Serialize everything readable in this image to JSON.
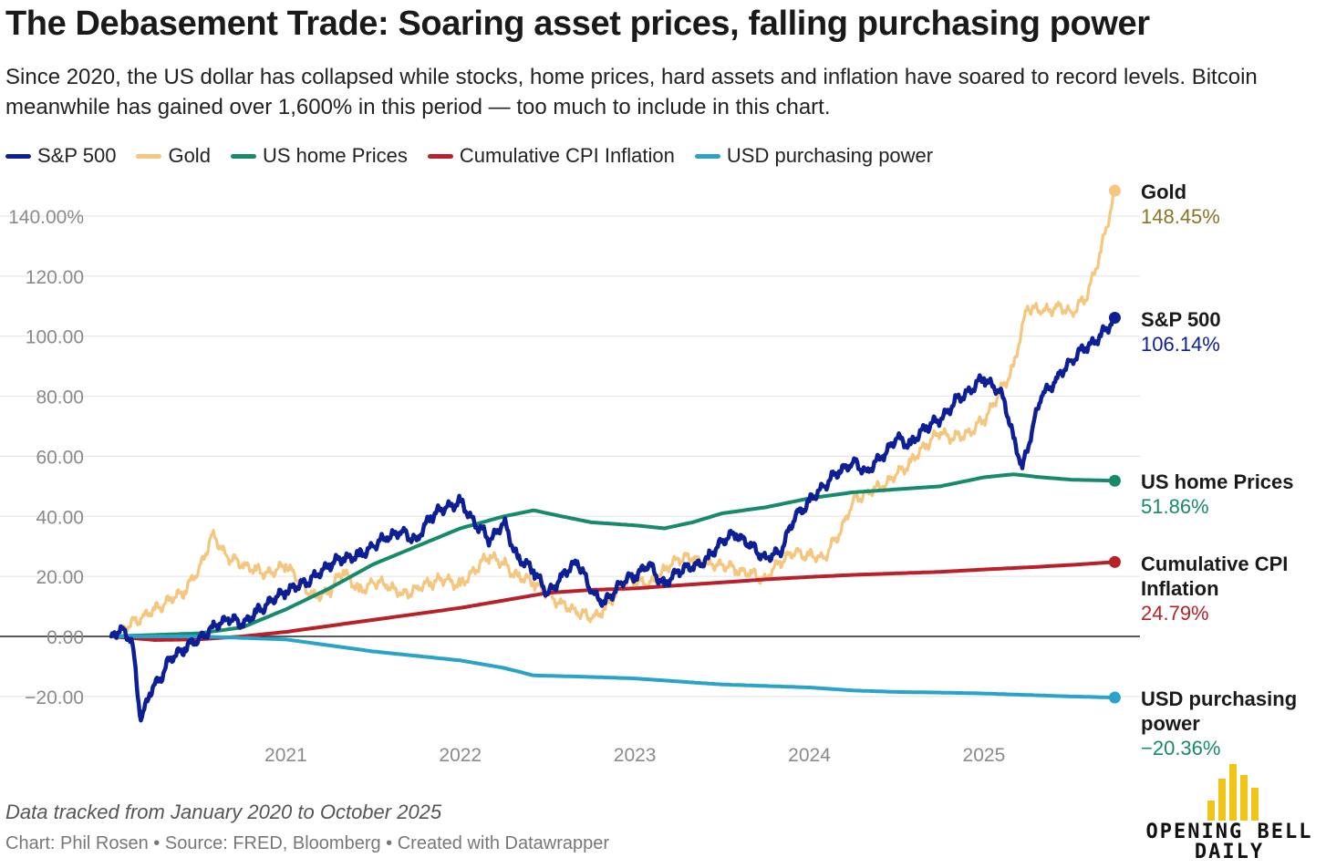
{
  "title": "The Debasement Trade: Soaring asset prices, falling purchasing power",
  "subtitle": "Since 2020, the US dollar has collapsed while stocks, home prices, hard assets and inflation have soared to record levels. Bitcoin meanwhile has gained over 1,600% in this period — too much to include in this chart.",
  "footnote": "Data tracked from January 2020 to October 2025",
  "credits": "Chart: Phil Rosen • Source: FRED, Bloomberg • Created with Datawrapper",
  "logo": {
    "line1": "OPENING BELL",
    "line2": "DAILY"
  },
  "colors": {
    "sp500": "#0d1f96",
    "gold": "#f5c77e",
    "home": "#168a6b",
    "cpi": "#b8202a",
    "usd": "#2aa3c8",
    "gold_label_value": "#8a7424",
    "logo_bars": "#f2c418"
  },
  "chart_data": {
    "type": "line",
    "x_unit": "year",
    "xlim": [
      2020.0,
      2025.8
    ],
    "ylim": [
      -33,
      150
    ],
    "y_ticks": [
      {
        "value": 140,
        "label": "140.00%"
      },
      {
        "value": 120,
        "label": "120.00"
      },
      {
        "value": 100,
        "label": "100.00"
      },
      {
        "value": 80,
        "label": "80.00"
      },
      {
        "value": 60,
        "label": "60.00"
      },
      {
        "value": 40,
        "label": "40.00"
      },
      {
        "value": 20,
        "label": "20.00"
      },
      {
        "value": 0,
        "label": "0.00"
      },
      {
        "value": -20,
        "label": "−20.00"
      }
    ],
    "x_ticks": [
      {
        "value": 2021.0,
        "label": "2021"
      },
      {
        "value": 2022.0,
        "label": "2022"
      },
      {
        "value": 2023.0,
        "label": "2023"
      },
      {
        "value": 2024.0,
        "label": "2024"
      },
      {
        "value": 2025.0,
        "label": "2025"
      }
    ],
    "grid": "horizontal",
    "legend_position": "top-left",
    "series": [
      {
        "key": "gold",
        "name": "Gold",
        "end_label": "Gold",
        "end_value_label": "148.45%",
        "points": [
          [
            2020.0,
            0
          ],
          [
            2020.08,
            3
          ],
          [
            2020.17,
            6
          ],
          [
            2020.25,
            9
          ],
          [
            2020.33,
            12
          ],
          [
            2020.42,
            15
          ],
          [
            2020.5,
            22
          ],
          [
            2020.58,
            34
          ],
          [
            2020.67,
            26
          ],
          [
            2020.75,
            24
          ],
          [
            2020.83,
            22
          ],
          [
            2020.92,
            21
          ],
          [
            2021.0,
            24
          ],
          [
            2021.08,
            18
          ],
          [
            2021.17,
            13
          ],
          [
            2021.25,
            15
          ],
          [
            2021.33,
            22
          ],
          [
            2021.42,
            15
          ],
          [
            2021.5,
            18
          ],
          [
            2021.58,
            17
          ],
          [
            2021.67,
            14
          ],
          [
            2021.75,
            16
          ],
          [
            2021.83,
            18
          ],
          [
            2021.92,
            19
          ],
          [
            2022.0,
            17
          ],
          [
            2022.08,
            22
          ],
          [
            2022.17,
            27
          ],
          [
            2022.25,
            24
          ],
          [
            2022.33,
            20
          ],
          [
            2022.42,
            18
          ],
          [
            2022.5,
            14
          ],
          [
            2022.58,
            11
          ],
          [
            2022.67,
            8
          ],
          [
            2022.75,
            6
          ],
          [
            2022.83,
            9
          ],
          [
            2022.92,
            17
          ],
          [
            2023.0,
            19
          ],
          [
            2023.08,
            17
          ],
          [
            2023.17,
            22
          ],
          [
            2023.25,
            26
          ],
          [
            2023.33,
            26
          ],
          [
            2023.42,
            24
          ],
          [
            2023.5,
            24
          ],
          [
            2023.58,
            22
          ],
          [
            2023.67,
            21
          ],
          [
            2023.75,
            19
          ],
          [
            2023.83,
            25
          ],
          [
            2023.92,
            28
          ],
          [
            2024.0,
            27
          ],
          [
            2024.08,
            26
          ],
          [
            2024.17,
            34
          ],
          [
            2024.25,
            45
          ],
          [
            2024.33,
            48
          ],
          [
            2024.42,
            50
          ],
          [
            2024.5,
            54
          ],
          [
            2024.58,
            58
          ],
          [
            2024.67,
            64
          ],
          [
            2024.75,
            68
          ],
          [
            2024.83,
            66
          ],
          [
            2024.92,
            68
          ],
          [
            2025.0,
            72
          ],
          [
            2025.08,
            80
          ],
          [
            2025.17,
            90
          ],
          [
            2025.25,
            110
          ],
          [
            2025.33,
            108
          ],
          [
            2025.42,
            110
          ],
          [
            2025.5,
            108
          ],
          [
            2025.58,
            112
          ],
          [
            2025.67,
            128
          ],
          [
            2025.75,
            148.45
          ]
        ]
      },
      {
        "key": "sp500",
        "name": "S&P 500",
        "end_label": "S&P 500",
        "end_value_label": "106.14%",
        "points": [
          [
            2020.0,
            0
          ],
          [
            2020.06,
            3
          ],
          [
            2020.12,
            -2
          ],
          [
            2020.17,
            -28
          ],
          [
            2020.22,
            -19
          ],
          [
            2020.28,
            -14
          ],
          [
            2020.33,
            -8
          ],
          [
            2020.42,
            -4
          ],
          [
            2020.5,
            -1
          ],
          [
            2020.58,
            3
          ],
          [
            2020.67,
            6
          ],
          [
            2020.75,
            4
          ],
          [
            2020.83,
            8
          ],
          [
            2020.92,
            12
          ],
          [
            2021.0,
            15
          ],
          [
            2021.08,
            17
          ],
          [
            2021.17,
            20
          ],
          [
            2021.25,
            24
          ],
          [
            2021.33,
            26
          ],
          [
            2021.42,
            27
          ],
          [
            2021.5,
            30
          ],
          [
            2021.58,
            33
          ],
          [
            2021.67,
            35
          ],
          [
            2021.75,
            32
          ],
          [
            2021.83,
            40
          ],
          [
            2021.92,
            43
          ],
          [
            2022.0,
            45
          ],
          [
            2022.08,
            38
          ],
          [
            2022.17,
            32
          ],
          [
            2022.25,
            38
          ],
          [
            2022.33,
            26
          ],
          [
            2022.42,
            22
          ],
          [
            2022.5,
            14
          ],
          [
            2022.58,
            20
          ],
          [
            2022.67,
            25
          ],
          [
            2022.75,
            15
          ],
          [
            2022.83,
            11
          ],
          [
            2022.92,
            18
          ],
          [
            2023.0,
            20
          ],
          [
            2023.08,
            24
          ],
          [
            2023.17,
            17
          ],
          [
            2023.25,
            22
          ],
          [
            2023.33,
            23
          ],
          [
            2023.42,
            26
          ],
          [
            2023.5,
            32
          ],
          [
            2023.58,
            34
          ],
          [
            2023.67,
            30
          ],
          [
            2023.75,
            26
          ],
          [
            2023.83,
            28
          ],
          [
            2023.92,
            40
          ],
          [
            2024.0,
            45
          ],
          [
            2024.08,
            50
          ],
          [
            2024.17,
            55
          ],
          [
            2024.25,
            58
          ],
          [
            2024.33,
            55
          ],
          [
            2024.42,
            60
          ],
          [
            2024.5,
            66
          ],
          [
            2024.58,
            64
          ],
          [
            2024.67,
            70
          ],
          [
            2024.75,
            72
          ],
          [
            2024.83,
            78
          ],
          [
            2024.92,
            82
          ],
          [
            2025.0,
            86
          ],
          [
            2025.08,
            82
          ],
          [
            2025.12,
            78
          ],
          [
            2025.17,
            66
          ],
          [
            2025.22,
            56
          ],
          [
            2025.28,
            70
          ],
          [
            2025.33,
            80
          ],
          [
            2025.42,
            86
          ],
          [
            2025.5,
            92
          ],
          [
            2025.58,
            96
          ],
          [
            2025.67,
            100
          ],
          [
            2025.75,
            106.14
          ]
        ]
      },
      {
        "key": "home",
        "name": "US home Prices",
        "end_label": "US home Prices",
        "end_value_label": "51.86%",
        "points": [
          [
            2020.0,
            0
          ],
          [
            2020.25,
            0.5
          ],
          [
            2020.5,
            1
          ],
          [
            2020.75,
            3
          ],
          [
            2021.0,
            9
          ],
          [
            2021.25,
            16
          ],
          [
            2021.5,
            24
          ],
          [
            2021.75,
            30
          ],
          [
            2022.0,
            36
          ],
          [
            2022.25,
            40
          ],
          [
            2022.42,
            42
          ],
          [
            2022.58,
            40
          ],
          [
            2022.75,
            38
          ],
          [
            2023.0,
            37
          ],
          [
            2023.17,
            36
          ],
          [
            2023.33,
            38
          ],
          [
            2023.5,
            41
          ],
          [
            2023.75,
            43
          ],
          [
            2024.0,
            46
          ],
          [
            2024.25,
            48
          ],
          [
            2024.5,
            49
          ],
          [
            2024.75,
            50
          ],
          [
            2025.0,
            53
          ],
          [
            2025.17,
            54
          ],
          [
            2025.33,
            53
          ],
          [
            2025.5,
            52.2
          ],
          [
            2025.75,
            51.86
          ]
        ]
      },
      {
        "key": "cpi",
        "name": "Cumulative CPI Inflation",
        "end_label": "Cumulative CPI Inflation",
        "end_value_label": "24.79%",
        "points": [
          [
            2020.0,
            0
          ],
          [
            2020.25,
            -1.2
          ],
          [
            2020.5,
            -1
          ],
          [
            2020.75,
            0
          ],
          [
            2021.0,
            1.5
          ],
          [
            2021.25,
            3.5
          ],
          [
            2021.5,
            5.5
          ],
          [
            2021.75,
            7.5
          ],
          [
            2022.0,
            9.5
          ],
          [
            2022.25,
            12
          ],
          [
            2022.5,
            14.5
          ],
          [
            2022.75,
            15.5
          ],
          [
            2023.0,
            16
          ],
          [
            2023.25,
            17
          ],
          [
            2023.5,
            18
          ],
          [
            2023.75,
            19
          ],
          [
            2024.0,
            19.8
          ],
          [
            2024.25,
            20.5
          ],
          [
            2024.5,
            21
          ],
          [
            2024.75,
            21.5
          ],
          [
            2025.0,
            22.3
          ],
          [
            2025.25,
            23
          ],
          [
            2025.5,
            23.8
          ],
          [
            2025.75,
            24.79
          ]
        ]
      },
      {
        "key": "usd",
        "name": "USD purchasing power",
        "end_label": "USD purchasing power",
        "end_value_label": "−20.36%",
        "points": [
          [
            2020.0,
            0
          ],
          [
            2020.5,
            0
          ],
          [
            2021.0,
            -1
          ],
          [
            2021.25,
            -3
          ],
          [
            2021.5,
            -5
          ],
          [
            2021.75,
            -6.5
          ],
          [
            2022.0,
            -8
          ],
          [
            2022.25,
            -10.5
          ],
          [
            2022.42,
            -13
          ],
          [
            2022.75,
            -13.5
          ],
          [
            2023.0,
            -14
          ],
          [
            2023.25,
            -15
          ],
          [
            2023.5,
            -16
          ],
          [
            2023.75,
            -16.5
          ],
          [
            2024.0,
            -17
          ],
          [
            2024.25,
            -18
          ],
          [
            2024.5,
            -18.5
          ],
          [
            2024.75,
            -18.7
          ],
          [
            2025.0,
            -19
          ],
          [
            2025.25,
            -19.5
          ],
          [
            2025.5,
            -20
          ],
          [
            2025.75,
            -20.36
          ]
        ]
      }
    ]
  }
}
